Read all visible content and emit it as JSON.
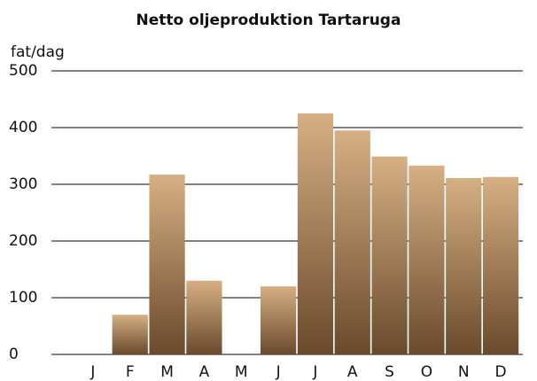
{
  "chart_data": {
    "type": "bar",
    "title": "Netto oljeproduktion Tartaruga",
    "ylabel": "fat/dag",
    "categories": [
      "J",
      "F",
      "M",
      "A",
      "M",
      "J",
      "J",
      "A",
      "S",
      "O",
      "N",
      "D"
    ],
    "values": [
      0,
      70,
      317,
      130,
      0,
      120,
      425,
      395,
      349,
      333,
      311,
      313
    ],
    "color": {
      "top": "#d6b083",
      "bottom": "#6a4a2c"
    },
    "ylim": [
      0,
      500
    ],
    "yticks": [
      0,
      100,
      200,
      300,
      400,
      500
    ],
    "grid": true
  }
}
